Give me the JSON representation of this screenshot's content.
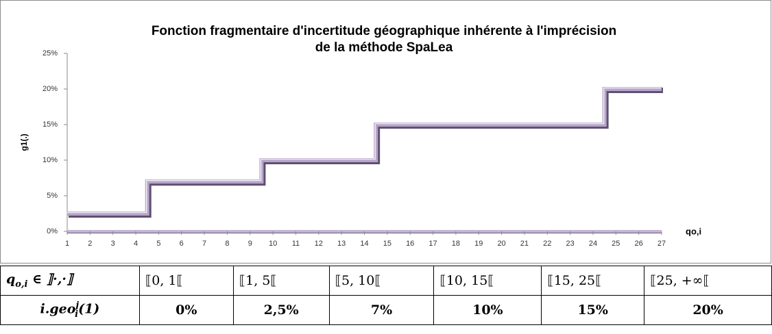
{
  "chart_data": {
    "type": "line",
    "title": [
      "Fonction fragmentaire d'incertitude géographique inhérente à l'imprécision",
      "de la méthode SpaLea"
    ],
    "ylabel": "g1(.)",
    "xlabel": "qo,i",
    "series": [
      {
        "name": "g1(.)",
        "color": "#b7a6c9",
        "x": [
          1,
          4.5,
          4.5,
          9.5,
          9.5,
          14.5,
          14.5,
          24.5,
          24.5,
          27
        ],
        "values": [
          2.5,
          2.5,
          7,
          7,
          10,
          10,
          15,
          15,
          20,
          20
        ]
      }
    ],
    "xlim": [
      1,
      27
    ],
    "xticks": [
      1,
      2,
      3,
      4,
      5,
      6,
      7,
      8,
      9,
      10,
      11,
      12,
      13,
      14,
      15,
      16,
      17,
      18,
      19,
      20,
      21,
      22,
      23,
      24,
      25,
      26,
      27
    ],
    "ylim": [
      0,
      25
    ],
    "yticks": [
      {
        "value": 0,
        "label": "0%"
      },
      {
        "value": 5,
        "label": "5%"
      },
      {
        "value": 10,
        "label": "10%"
      },
      {
        "value": 15,
        "label": "15%"
      },
      {
        "value": 20,
        "label": "20%"
      },
      {
        "value": 25,
        "label": "25%"
      }
    ],
    "grid": false
  },
  "table": {
    "rows": [
      [
        {
          "base": "q",
          "sub": "o,i",
          "rest": " ∈   ⟧·,·⟧"
        },
        "⟦0, 1⟦",
        "⟦1, 5⟦",
        "⟦5, 10⟦",
        "⟦10, 15⟦",
        "⟦15, 25⟦",
        "⟦25, +∞⟦"
      ],
      [
        {
          "prefix": "i.",
          "base": "geo",
          "sup": "j",
          "sub": "i",
          "rest": "(1)"
        },
        "0%",
        "2,5%",
        "7%",
        "10%",
        "15%",
        "20%"
      ]
    ]
  }
}
